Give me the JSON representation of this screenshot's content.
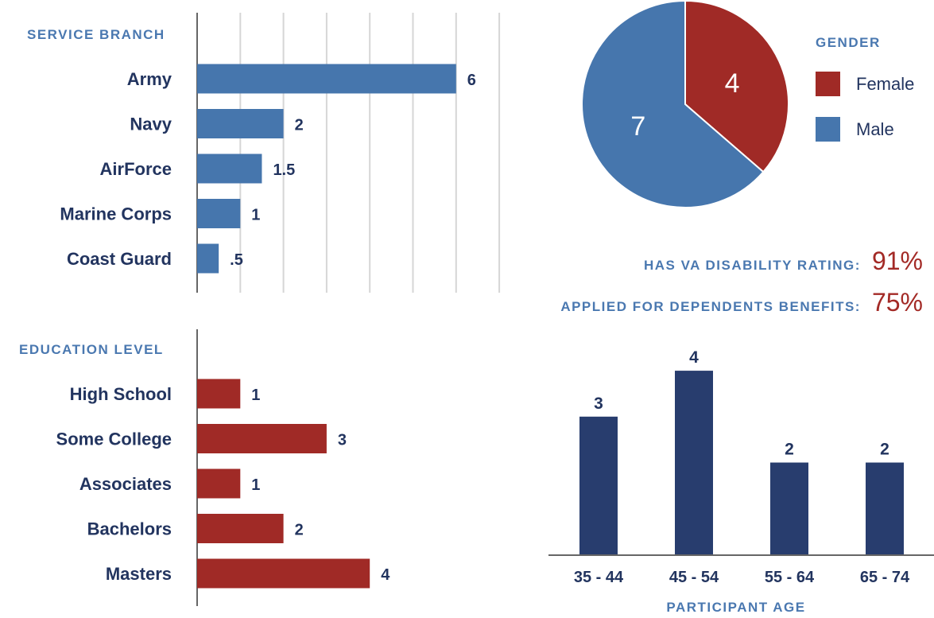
{
  "colors": {
    "blue": "#4676ad",
    "red": "#a02a26",
    "navy": "#283d6e",
    "label": "#22345f",
    "heading": "#4a78b0",
    "grid": "#d6d6d6",
    "axis": "#666666"
  },
  "stats": [
    {
      "label": "HAS VA DISABILITY RATING:",
      "value": "91%"
    },
    {
      "label": "APPLIED FOR DEPENDENTS BENEFITS:",
      "value": "75%"
    }
  ],
  "chart_data": [
    {
      "type": "bar",
      "orientation": "horizontal",
      "title": "SERVICE BRANCH",
      "categories": [
        "Army",
        "Navy",
        "AirForce",
        "Marine Corps",
        "Coast Guard"
      ],
      "values": [
        6,
        2,
        1.5,
        1,
        0.5
      ],
      "data_labels": [
        "6",
        "2",
        "1.5",
        "1",
        ".5"
      ],
      "xlim": [
        0,
        7
      ],
      "grid": true,
      "color": "#4676ad"
    },
    {
      "type": "bar",
      "orientation": "horizontal",
      "title": "EDUCATION LEVEL",
      "categories": [
        "High School",
        "Some College",
        "Associates",
        "Bachelors",
        "Masters"
      ],
      "values": [
        1,
        3,
        1,
        2,
        4
      ],
      "data_labels": [
        "1",
        "3",
        "1",
        "2",
        "4"
      ],
      "xlim": [
        0,
        7
      ],
      "grid": false,
      "color": "#a02a26"
    },
    {
      "type": "pie",
      "title": "GENDER",
      "categories": [
        "Female",
        "Male"
      ],
      "values": [
        4,
        7
      ],
      "colors": [
        "#a02a26",
        "#4676ad"
      ],
      "legend_position": "right"
    },
    {
      "type": "bar",
      "orientation": "vertical",
      "xlabel": "PARTICIPANT AGE",
      "categories": [
        "35 - 44",
        "45 - 54",
        "55 - 64",
        "65 - 74"
      ],
      "values": [
        3,
        4,
        2,
        2
      ],
      "data_labels": [
        "3",
        "4",
        "2",
        "2"
      ],
      "ylim": [
        0,
        4.4
      ],
      "color": "#283d6e"
    }
  ]
}
